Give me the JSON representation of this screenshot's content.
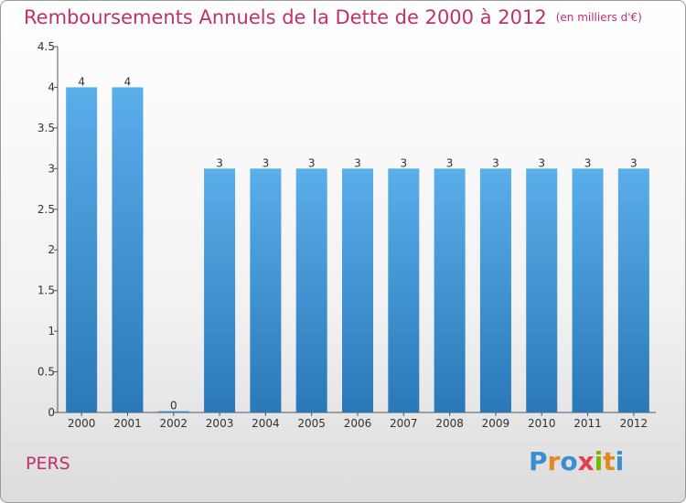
{
  "header": {
    "title": "Remboursements Annuels de la Dette de 2000 à 2012",
    "unit": "(en milliers d'€)"
  },
  "footer": {
    "commune": "PERS",
    "logo": "Proxiti",
    "logo_icon": "proxiti-logo"
  },
  "chart_data": {
    "type": "bar",
    "categories": [
      "2000",
      "2001",
      "2002",
      "2003",
      "2004",
      "2005",
      "2006",
      "2007",
      "2008",
      "2009",
      "2010",
      "2011",
      "2012"
    ],
    "values": [
      4,
      4,
      0,
      3,
      3,
      3,
      3,
      3,
      3,
      3,
      3,
      3,
      3
    ],
    "data_labels": [
      "4",
      "4",
      "0",
      "3",
      "3",
      "3",
      "3",
      "3",
      "3",
      "3",
      "3",
      "3",
      "3"
    ],
    "y_ticks": [
      "0",
      "0.5",
      "1",
      "1.5",
      "2",
      "2.5",
      "3",
      "3.5",
      "4",
      "4.5"
    ],
    "ylim": [
      0,
      4.5
    ],
    "bar_color_top": "#5aaeea",
    "bar_color_bottom": "#2a78b8",
    "title_color": "#c0306a"
  }
}
